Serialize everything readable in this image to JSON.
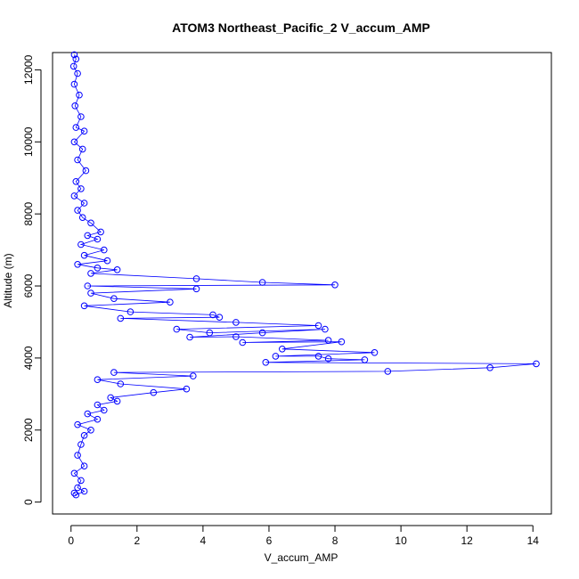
{
  "chart_data": {
    "type": "scatter",
    "title": "ATOM3 Northeast_Pacific_2 V_accum_AMP",
    "xlabel": "V_accum_AMP",
    "ylabel": "Altitude (m)",
    "xlim": [
      -0.56,
      14.56
    ],
    "ylim": [
      -330,
      12480
    ],
    "xticks": [
      0,
      2,
      4,
      6,
      8,
      10,
      12,
      14
    ],
    "yticks": [
      0,
      2000,
      4000,
      6000,
      8000,
      10000,
      12000
    ],
    "grid": false,
    "legend": "none",
    "series": [
      {
        "marker": "open-circle",
        "connected": true,
        "points": [
          [
            0.1,
            12420
          ],
          [
            0.15,
            12300
          ],
          [
            0.08,
            12100
          ],
          [
            0.2,
            11900
          ],
          [
            0.1,
            11600
          ],
          [
            0.25,
            11300
          ],
          [
            0.12,
            11000
          ],
          [
            0.3,
            10700
          ],
          [
            0.15,
            10400
          ],
          [
            0.4,
            10300
          ],
          [
            0.1,
            10000
          ],
          [
            0.35,
            9800
          ],
          [
            0.2,
            9500
          ],
          [
            0.45,
            9200
          ],
          [
            0.15,
            8900
          ],
          [
            0.3,
            8700
          ],
          [
            0.1,
            8500
          ],
          [
            0.4,
            8300
          ],
          [
            0.2,
            8100
          ],
          [
            0.35,
            7900
          ],
          [
            0.6,
            7750
          ],
          [
            0.9,
            7500
          ],
          [
            0.5,
            7400
          ],
          [
            0.8,
            7300
          ],
          [
            0.3,
            7150
          ],
          [
            1.0,
            7000
          ],
          [
            0.4,
            6850
          ],
          [
            1.1,
            6700
          ],
          [
            0.2,
            6600
          ],
          [
            0.8,
            6500
          ],
          [
            1.4,
            6450
          ],
          [
            0.6,
            6350
          ],
          [
            3.8,
            6200
          ],
          [
            5.8,
            6100
          ],
          [
            8.0,
            6030
          ],
          [
            0.5,
            6000
          ],
          [
            3.8,
            5920
          ],
          [
            0.6,
            5800
          ],
          [
            1.3,
            5650
          ],
          [
            3.0,
            5550
          ],
          [
            0.4,
            5450
          ],
          [
            1.8,
            5280
          ],
          [
            4.3,
            5200
          ],
          [
            4.5,
            5130
          ],
          [
            1.5,
            5100
          ],
          [
            5.0,
            4990
          ],
          [
            7.5,
            4900
          ],
          [
            3.2,
            4800
          ],
          [
            4.2,
            4700
          ],
          [
            7.7,
            4800
          ],
          [
            5.8,
            4700
          ],
          [
            3.6,
            4580
          ],
          [
            5.0,
            4590
          ],
          [
            7.8,
            4490
          ],
          [
            5.2,
            4430
          ],
          [
            8.2,
            4450
          ],
          [
            6.4,
            4250
          ],
          [
            9.2,
            4150
          ],
          [
            6.2,
            4050
          ],
          [
            7.5,
            4050
          ],
          [
            7.8,
            3980
          ],
          [
            8.9,
            3950
          ],
          [
            5.9,
            3880
          ],
          [
            14.1,
            3840
          ],
          [
            12.7,
            3730
          ],
          [
            9.6,
            3630
          ],
          [
            1.3,
            3600
          ],
          [
            3.7,
            3500
          ],
          [
            0.8,
            3400
          ],
          [
            1.5,
            3280
          ],
          [
            3.5,
            3140
          ],
          [
            2.5,
            3040
          ],
          [
            1.2,
            2900
          ],
          [
            1.4,
            2800
          ],
          [
            0.8,
            2700
          ],
          [
            1.0,
            2550
          ],
          [
            0.5,
            2450
          ],
          [
            0.8,
            2300
          ],
          [
            0.2,
            2150
          ],
          [
            0.6,
            2000
          ],
          [
            0.4,
            1850
          ],
          [
            0.3,
            1600
          ],
          [
            0.2,
            1300
          ],
          [
            0.4,
            1000
          ],
          [
            0.1,
            800
          ],
          [
            0.3,
            600
          ],
          [
            0.2,
            400
          ],
          [
            0.4,
            300
          ],
          [
            0.15,
            200
          ],
          [
            0.1,
            250
          ]
        ]
      }
    ]
  }
}
